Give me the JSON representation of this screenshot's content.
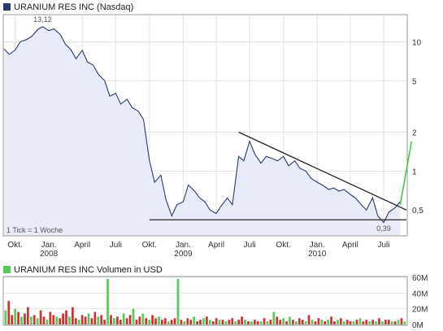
{
  "chart_data": [
    {
      "type": "line",
      "title": "URANIUM RES INC (Nasdaq)",
      "scale": "log",
      "yticks": [
        0.5,
        1,
        2,
        5,
        10
      ],
      "ytick_labels": [
        "0,5",
        "1",
        "2",
        "5",
        "10"
      ],
      "ylim": [
        0.32,
        16
      ],
      "xlim": [
        "2007-09-01",
        "2010-09-01"
      ],
      "xticks": [
        {
          "date": "2007-10-01",
          "label": "Okt.",
          "year": ""
        },
        {
          "date": "2008-01-01",
          "label": "Jan.",
          "year": "2008"
        },
        {
          "date": "2008-04-01",
          "label": "April",
          "year": ""
        },
        {
          "date": "2008-07-01",
          "label": "Juli",
          "year": ""
        },
        {
          "date": "2008-10-01",
          "label": "Okt.",
          "year": ""
        },
        {
          "date": "2009-01-01",
          "label": "Jan.",
          "year": "2009"
        },
        {
          "date": "2009-04-01",
          "label": "April",
          "year": ""
        },
        {
          "date": "2009-07-01",
          "label": "Juli",
          "year": ""
        },
        {
          "date": "2009-10-01",
          "label": "Okt.",
          "year": ""
        },
        {
          "date": "2010-01-01",
          "label": "Jan.",
          "year": "2010"
        },
        {
          "date": "2010-04-01",
          "label": "April",
          "year": ""
        },
        {
          "date": "2010-07-01",
          "label": "Juli",
          "year": ""
        }
      ],
      "tick_note": "1 Tick = 1 Woche",
      "max_label": "13,12",
      "min_label": "0,39",
      "grid": true,
      "colors": {
        "line": "#2b3a6b",
        "fill": "#e8ecf8",
        "trend": "#222222",
        "projection": "#33cc33"
      },
      "series": [
        {
          "values": [
            [
              "2007-09-01",
              8.8
            ],
            [
              "2007-09-15",
              8.0
            ],
            [
              "2007-10-01",
              8.6
            ],
            [
              "2007-10-15",
              10.0
            ],
            [
              "2007-11-01",
              10.4
            ],
            [
              "2007-11-15",
              11.0
            ],
            [
              "2007-12-01",
              12.4
            ],
            [
              "2007-12-15",
              13.1
            ],
            [
              "2008-01-01",
              12.2
            ],
            [
              "2008-01-15",
              12.6
            ],
            [
              "2008-02-01",
              11.4
            ],
            [
              "2008-02-15",
              9.6
            ],
            [
              "2008-03-01",
              8.7
            ],
            [
              "2008-03-15",
              7.4
            ],
            [
              "2008-04-01",
              8.6
            ],
            [
              "2008-04-15",
              7.0
            ],
            [
              "2008-05-01",
              6.6
            ],
            [
              "2008-05-15",
              5.6
            ],
            [
              "2008-06-01",
              5.0
            ],
            [
              "2008-06-15",
              3.8
            ],
            [
              "2008-07-01",
              4.0
            ],
            [
              "2008-07-15",
              3.3
            ],
            [
              "2008-08-01",
              3.6
            ],
            [
              "2008-08-15",
              3.1
            ],
            [
              "2008-09-01",
              2.9
            ],
            [
              "2008-09-15",
              2.5
            ],
            [
              "2008-10-01",
              1.2
            ],
            [
              "2008-10-15",
              0.82
            ],
            [
              "2008-11-01",
              0.93
            ],
            [
              "2008-11-15",
              0.6
            ],
            [
              "2008-12-01",
              0.45
            ],
            [
              "2008-12-15",
              0.55
            ],
            [
              "2009-01-01",
              0.58
            ],
            [
              "2009-01-15",
              0.78
            ],
            [
              "2009-02-01",
              0.7
            ],
            [
              "2009-02-15",
              0.62
            ],
            [
              "2009-03-01",
              0.58
            ],
            [
              "2009-03-15",
              0.5
            ],
            [
              "2009-04-01",
              0.47
            ],
            [
              "2009-04-15",
              0.54
            ],
            [
              "2009-05-01",
              0.62
            ],
            [
              "2009-05-15",
              0.55
            ],
            [
              "2009-06-01",
              1.3
            ],
            [
              "2009-06-15",
              1.2
            ],
            [
              "2009-07-01",
              1.7
            ],
            [
              "2009-07-15",
              1.35
            ],
            [
              "2009-08-01",
              1.15
            ],
            [
              "2009-08-15",
              1.3
            ],
            [
              "2009-09-01",
              1.25
            ],
            [
              "2009-09-15",
              1.2
            ],
            [
              "2009-10-01",
              1.3
            ],
            [
              "2009-10-15",
              1.1
            ],
            [
              "2009-11-01",
              1.2
            ],
            [
              "2009-11-15",
              1.05
            ],
            [
              "2009-12-01",
              1.0
            ],
            [
              "2009-12-15",
              0.88
            ],
            [
              "2010-01-01",
              0.82
            ],
            [
              "2010-01-15",
              0.78
            ],
            [
              "2010-02-01",
              0.72
            ],
            [
              "2010-02-15",
              0.74
            ],
            [
              "2010-03-01",
              0.7
            ],
            [
              "2010-03-15",
              0.72
            ],
            [
              "2010-04-01",
              0.66
            ],
            [
              "2010-04-15",
              0.62
            ],
            [
              "2010-05-01",
              0.55
            ],
            [
              "2010-05-15",
              0.5
            ],
            [
              "2010-06-01",
              0.62
            ],
            [
              "2010-06-15",
              0.45
            ],
            [
              "2010-07-01",
              0.4
            ],
            [
              "2010-07-15",
              0.48
            ],
            [
              "2010-08-01",
              0.52
            ],
            [
              "2010-08-15",
              0.58
            ]
          ]
        }
      ],
      "trendlines": [
        {
          "from": [
            "2009-06-01",
            2.0
          ],
          "to": [
            "2010-09-01",
            0.5
          ]
        },
        {
          "from": [
            "2008-10-01",
            0.42
          ],
          "to": [
            "2010-09-01",
            0.42
          ]
        }
      ],
      "projection": {
        "from": [
          "2010-08-15",
          0.55
        ],
        "to": [
          "2010-09-15",
          1.7
        ]
      }
    },
    {
      "type": "bar",
      "title": "URANIUM RES INC Volumen in USD",
      "ylim": [
        0,
        60000000
      ],
      "yticks": [
        0,
        20000000,
        40000000,
        60000000
      ],
      "ytick_labels": [
        "0M",
        "20M",
        "40M",
        "60M"
      ],
      "colors": {
        "up": "#55cc55",
        "down": "#cc3333"
      },
      "values": [
        18,
        30,
        12,
        20,
        16,
        10,
        14,
        22,
        10,
        12,
        8,
        18,
        10,
        6,
        16,
        12,
        10,
        8,
        14,
        18,
        10,
        22,
        8,
        6,
        12,
        10,
        14,
        8,
        16,
        10,
        12,
        6,
        58,
        12,
        8,
        10,
        6,
        14,
        8,
        12,
        20,
        6,
        10,
        14,
        8,
        6,
        12,
        8,
        10,
        6,
        8,
        4,
        6,
        8,
        58,
        6,
        4,
        8,
        6,
        10,
        4,
        6,
        8,
        10,
        6,
        4,
        8,
        6,
        6,
        4,
        6,
        8,
        4,
        6,
        10,
        6,
        4,
        4,
        6,
        4,
        4,
        8,
        4,
        6,
        16,
        10,
        6,
        8,
        4,
        10,
        6,
        4,
        8,
        6,
        4,
        12,
        6,
        4,
        8,
        6,
        4,
        6,
        10,
        4,
        6,
        8,
        4,
        6,
        4,
        4,
        6,
        8,
        4,
        6,
        4,
        6,
        4,
        8,
        4,
        6,
        6,
        4,
        4,
        6,
        8,
        4
      ],
      "up": [
        1,
        0,
        0,
        1,
        0,
        1,
        0,
        0,
        1,
        0,
        1,
        0,
        0,
        1,
        0,
        0,
        1,
        0,
        0,
        0,
        1,
        0,
        0,
        1,
        0,
        0,
        1,
        0,
        0,
        1,
        0,
        0,
        1,
        0,
        1,
        0,
        0,
        1,
        0,
        0,
        1,
        0,
        0,
        1,
        0,
        1,
        0,
        0,
        1,
        0,
        0,
        1,
        0,
        0,
        1,
        0,
        1,
        0,
        0,
        1,
        0,
        0,
        1,
        0,
        1,
        0,
        0,
        1,
        0,
        1,
        0,
        0,
        1,
        0,
        0,
        1,
        0,
        1,
        0,
        0,
        1,
        0,
        1,
        0,
        1,
        0,
        0,
        1,
        0,
        1,
        0,
        1,
        0,
        0,
        1,
        0,
        1,
        0,
        0,
        1,
        0,
        1,
        0,
        0,
        1,
        0,
        1,
        0,
        0,
        1,
        0,
        1,
        0,
        0,
        1,
        0,
        1,
        0,
        1,
        0,
        0,
        1,
        0,
        1,
        0,
        1
      ]
    }
  ]
}
